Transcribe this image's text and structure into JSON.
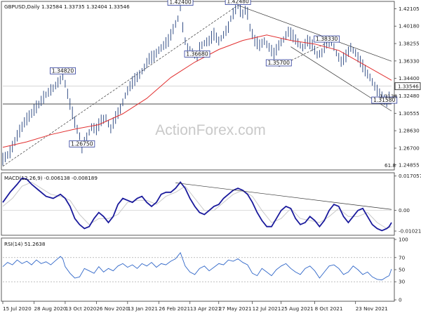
{
  "chart_data": {
    "type": "line",
    "symbol": "GBPUSD",
    "timeframe": "Daily",
    "ohlc": {
      "open": "1.32584",
      "high": "1.33735",
      "low": "1.32404",
      "close": "1.33546"
    },
    "header_text": "GBPUSD,Daily  1.32584 1.33735 1.32404 1.33546",
    "watermark": "ActionForex.com",
    "x_tick_labels": [
      "15 Jul 2020",
      "28 Aug 2020",
      "13 Oct 2020",
      "26 Nov 2020",
      "13 Jan 2021",
      "26 Feb 2021",
      "13 Apr 2021",
      "27 May 2021",
      "12 Jul 2021",
      "25 Aug 2021",
      "8 Oct 2021",
      "23 Nov 2021"
    ],
    "price_panel": {
      "y_ticks": [
        "1.42105",
        "1.40180",
        "1.38255",
        "1.36330",
        "1.34400",
        "1.32480",
        "1.30555",
        "1.28630",
        "1.26700",
        "1.24855"
      ],
      "ylim": [
        1.2445,
        1.426
      ],
      "current_price": "1.33546",
      "close_series": [
        [
          0,
          1.254
        ],
        [
          3,
          1.262
        ],
        [
          6,
          1.28
        ],
        [
          9,
          1.295
        ],
        [
          12,
          1.305
        ],
        [
          15,
          1.315
        ],
        [
          18,
          1.326
        ],
        [
          21,
          1.333
        ],
        [
          24,
          1.342
        ],
        [
          25,
          1.3482
        ],
        [
          26,
          1.338
        ],
        [
          28,
          1.315
        ],
        [
          30,
          1.295
        ],
        [
          32,
          1.28
        ],
        [
          33,
          1.2675
        ],
        [
          35,
          1.279
        ],
        [
          37,
          1.29
        ],
        [
          39,
          1.287
        ],
        [
          41,
          1.297
        ],
        [
          43,
          1.3
        ],
        [
          45,
          1.288
        ],
        [
          47,
          1.3
        ],
        [
          49,
          1.31
        ],
        [
          51,
          1.325
        ],
        [
          53,
          1.335
        ],
        [
          55,
          1.342
        ],
        [
          57,
          1.348
        ],
        [
          59,
          1.356
        ],
        [
          61,
          1.365
        ],
        [
          63,
          1.368
        ],
        [
          65,
          1.375
        ],
        [
          67,
          1.38
        ],
        [
          69,
          1.385
        ],
        [
          71,
          1.398
        ],
        [
          73,
          1.41
        ],
        [
          74,
          1.424
        ],
        [
          75,
          1.4
        ],
        [
          76,
          1.385
        ],
        [
          77,
          1.375
        ],
        [
          79,
          1.372
        ],
        [
          81,
          1.3668
        ],
        [
          82,
          1.378
        ],
        [
          84,
          1.383
        ],
        [
          86,
          1.385
        ],
        [
          88,
          1.392
        ],
        [
          90,
          1.385
        ],
        [
          92,
          1.392
        ],
        [
          94,
          1.4
        ],
        [
          95,
          1.41
        ],
        [
          96,
          1.415
        ],
        [
          97,
          1.42
        ],
        [
          98,
          1.4248
        ],
        [
          99,
          1.418
        ],
        [
          100,
          1.415
        ],
        [
          101,
          1.419
        ],
        [
          102,
          1.415
        ],
        [
          103,
          1.4
        ],
        [
          105,
          1.385
        ],
        [
          107,
          1.38
        ],
        [
          109,
          1.385
        ],
        [
          111,
          1.378
        ],
        [
          113,
          1.37
        ],
        [
          115,
          1.38
        ],
        [
          117,
          1.387
        ],
        [
          119,
          1.395
        ],
        [
          121,
          1.39
        ],
        [
          123,
          1.383
        ],
        [
          125,
          1.378
        ],
        [
          127,
          1.385
        ],
        [
          129,
          1.38
        ],
        [
          131,
          1.37
        ],
        [
          133,
          1.372
        ],
        [
          135,
          1.3833
        ],
        [
          137,
          1.385
        ],
        [
          139,
          1.372
        ],
        [
          141,
          1.362
        ],
        [
          143,
          1.368
        ],
        [
          145,
          1.378
        ],
        [
          147,
          1.372
        ],
        [
          149,
          1.362
        ],
        [
          151,
          1.352
        ],
        [
          153,
          1.345
        ],
        [
          155,
          1.335
        ],
        [
          157,
          1.325
        ],
        [
          159,
          1.32
        ],
        [
          160,
          1.318
        ],
        [
          161,
          1.326
        ],
        [
          162,
          1.3354
        ]
      ],
      "ma_red": [
        [
          0,
          1.268
        ],
        [
          10,
          1.274
        ],
        [
          20,
          1.282
        ],
        [
          30,
          1.288
        ],
        [
          40,
          1.293
        ],
        [
          50,
          1.305
        ],
        [
          60,
          1.322
        ],
        [
          70,
          1.345
        ],
        [
          80,
          1.362
        ],
        [
          90,
          1.376
        ],
        [
          100,
          1.386
        ],
        [
          110,
          1.392
        ],
        [
          120,
          1.386
        ],
        [
          130,
          1.382
        ],
        [
          140,
          1.375
        ],
        [
          150,
          1.36
        ],
        [
          160,
          1.345
        ],
        [
          162,
          1.342
        ]
      ],
      "labels": [
        {
          "text": "1.42400",
          "x": 74,
          "y": 1.424
        },
        {
          "text": "1.42480",
          "x": 98,
          "y": 1.4248
        },
        {
          "text": "1.34820",
          "x": 25,
          "y": 1.3482
        },
        {
          "text": "1.36680",
          "x": 81,
          "y": 1.3668
        },
        {
          "text": "1.35700",
          "x": 115,
          "y": 1.357
        },
        {
          "text": "1.38330",
          "x": 135,
          "y": 1.3833
        },
        {
          "text": "1.26750",
          "x": 33,
          "y": 1.2675
        },
        {
          "text": "1.31580",
          "x": 159,
          "y": 1.3158
        }
      ],
      "level_text_61_8": "61.8",
      "level_text_near_low": "1.3138",
      "hline_price": 1.3158
    },
    "macd_panel": {
      "title": "MACD(12,26,9) -0.006138 -0.008189",
      "y_ticks": [
        "0.017057",
        "0.00",
        "-0.010219"
      ],
      "ylim": [
        -0.0116,
        0.018
      ],
      "macd": [
        [
          0,
          0.004
        ],
        [
          3,
          0.009
        ],
        [
          6,
          0.013
        ],
        [
          8,
          0.016
        ],
        [
          10,
          0.0155
        ],
        [
          12,
          0.013
        ],
        [
          15,
          0.01
        ],
        [
          18,
          0.007
        ],
        [
          21,
          0.006
        ],
        [
          24,
          0.008
        ],
        [
          26,
          0.006
        ],
        [
          28,
          0.002
        ],
        [
          30,
          -0.004
        ],
        [
          32,
          -0.007
        ],
        [
          34,
          -0.009
        ],
        [
          36,
          -0.008
        ],
        [
          38,
          -0.004
        ],
        [
          40,
          -0.001
        ],
        [
          42,
          -0.003
        ],
        [
          44,
          -0.006
        ],
        [
          46,
          -0.003
        ],
        [
          48,
          0.003
        ],
        [
          50,
          0.006
        ],
        [
          52,
          0.005
        ],
        [
          54,
          0.004
        ],
        [
          56,
          0.006
        ],
        [
          58,
          0.007
        ],
        [
          60,
          0.004
        ],
        [
          62,
          0.002
        ],
        [
          64,
          0.004
        ],
        [
          66,
          0.008
        ],
        [
          68,
          0.009
        ],
        [
          70,
          0.009
        ],
        [
          72,
          0.011
        ],
        [
          74,
          0.014
        ],
        [
          76,
          0.011
        ],
        [
          78,
          0.006
        ],
        [
          80,
          0.002
        ],
        [
          82,
          -0.001
        ],
        [
          84,
          -0.002
        ],
        [
          86,
          0.0
        ],
        [
          88,
          0.002
        ],
        [
          90,
          0.003
        ],
        [
          92,
          0.006
        ],
        [
          94,
          0.008
        ],
        [
          96,
          0.01
        ],
        [
          98,
          0.011
        ],
        [
          100,
          0.01
        ],
        [
          102,
          0.008
        ],
        [
          104,
          0.004
        ],
        [
          106,
          -0.001
        ],
        [
          108,
          -0.005
        ],
        [
          110,
          -0.008
        ],
        [
          112,
          -0.008
        ],
        [
          114,
          -0.004
        ],
        [
          116,
          0.0
        ],
        [
          118,
          0.002
        ],
        [
          120,
          0.001
        ],
        [
          122,
          -0.004
        ],
        [
          124,
          -0.007
        ],
        [
          126,
          -0.006
        ],
        [
          128,
          -0.003
        ],
        [
          130,
          -0.005
        ],
        [
          132,
          -0.008
        ],
        [
          134,
          -0.005
        ],
        [
          136,
          0.0
        ],
        [
          138,
          0.003
        ],
        [
          140,
          0.002
        ],
        [
          142,
          -0.003
        ],
        [
          144,
          -0.006
        ],
        [
          146,
          -0.003
        ],
        [
          148,
          0.0
        ],
        [
          150,
          0.001
        ],
        [
          152,
          -0.003
        ],
        [
          154,
          -0.007
        ],
        [
          156,
          -0.009
        ],
        [
          158,
          -0.01
        ],
        [
          160,
          -0.009
        ],
        [
          161,
          -0.008
        ],
        [
          162,
          -0.006
        ]
      ],
      "signal": [
        [
          0,
          0.002
        ],
        [
          4,
          0.006
        ],
        [
          8,
          0.012
        ],
        [
          12,
          0.014
        ],
        [
          16,
          0.011
        ],
        [
          20,
          0.008
        ],
        [
          24,
          0.007
        ],
        [
          28,
          0.005
        ],
        [
          32,
          -0.002
        ],
        [
          36,
          -0.007
        ],
        [
          40,
          -0.004
        ],
        [
          44,
          -0.004
        ],
        [
          48,
          -0.002
        ],
        [
          52,
          0.004
        ],
        [
          56,
          0.005
        ],
        [
          60,
          0.005
        ],
        [
          64,
          0.003
        ],
        [
          68,
          0.007
        ],
        [
          72,
          0.009
        ],
        [
          76,
          0.012
        ],
        [
          80,
          0.006
        ],
        [
          84,
          0.0
        ],
        [
          88,
          0.0
        ],
        [
          92,
          0.004
        ],
        [
          96,
          0.008
        ],
        [
          100,
          0.01
        ],
        [
          104,
          0.007
        ],
        [
          108,
          0.0
        ],
        [
          112,
          -0.006
        ],
        [
          116,
          -0.004
        ],
        [
          120,
          0.001
        ],
        [
          124,
          -0.004
        ],
        [
          128,
          -0.005
        ],
        [
          132,
          -0.006
        ],
        [
          136,
          -0.003
        ],
        [
          140,
          0.001
        ],
        [
          144,
          -0.003
        ],
        [
          148,
          -0.003
        ],
        [
          152,
          -0.001
        ],
        [
          156,
          -0.006
        ],
        [
          160,
          -0.009
        ],
        [
          162,
          -0.008
        ]
      ]
    },
    "rsi_panel": {
      "title": "RSI(14) 51.2638",
      "y_ticks": [
        "100",
        "70",
        "50",
        "30",
        "0"
      ],
      "ylim": [
        0,
        100
      ],
      "rsi": [
        [
          0,
          55
        ],
        [
          2,
          62
        ],
        [
          4,
          58
        ],
        [
          6,
          66
        ],
        [
          8,
          60
        ],
        [
          10,
          64
        ],
        [
          12,
          58
        ],
        [
          14,
          66
        ],
        [
          16,
          60
        ],
        [
          18,
          63
        ],
        [
          20,
          58
        ],
        [
          22,
          65
        ],
        [
          24,
          72
        ],
        [
          25,
          68
        ],
        [
          26,
          55
        ],
        [
          28,
          44
        ],
        [
          30,
          36
        ],
        [
          32,
          38
        ],
        [
          34,
          52
        ],
        [
          36,
          48
        ],
        [
          38,
          44
        ],
        [
          40,
          55
        ],
        [
          42,
          46
        ],
        [
          44,
          52
        ],
        [
          46,
          48
        ],
        [
          48,
          56
        ],
        [
          50,
          60
        ],
        [
          52,
          54
        ],
        [
          54,
          58
        ],
        [
          56,
          52
        ],
        [
          58,
          60
        ],
        [
          60,
          56
        ],
        [
          62,
          62
        ],
        [
          64,
          54
        ],
        [
          66,
          60
        ],
        [
          68,
          58
        ],
        [
          70,
          64
        ],
        [
          72,
          68
        ],
        [
          74,
          78
        ],
        [
          76,
          56
        ],
        [
          78,
          46
        ],
        [
          80,
          42
        ],
        [
          82,
          52
        ],
        [
          84,
          56
        ],
        [
          86,
          48
        ],
        [
          88,
          54
        ],
        [
          90,
          60
        ],
        [
          92,
          58
        ],
        [
          94,
          66
        ],
        [
          96,
          64
        ],
        [
          98,
          68
        ],
        [
          100,
          62
        ],
        [
          102,
          58
        ],
        [
          104,
          44
        ],
        [
          106,
          40
        ],
        [
          108,
          52
        ],
        [
          110,
          46
        ],
        [
          112,
          40
        ],
        [
          114,
          50
        ],
        [
          116,
          56
        ],
        [
          118,
          60
        ],
        [
          120,
          52
        ],
        [
          122,
          46
        ],
        [
          124,
          42
        ],
        [
          126,
          52
        ],
        [
          128,
          56
        ],
        [
          130,
          48
        ],
        [
          132,
          36
        ],
        [
          134,
          46
        ],
        [
          136,
          56
        ],
        [
          138,
          58
        ],
        [
          140,
          52
        ],
        [
          142,
          42
        ],
        [
          144,
          46
        ],
        [
          146,
          56
        ],
        [
          148,
          50
        ],
        [
          150,
          42
        ],
        [
          152,
          46
        ],
        [
          154,
          38
        ],
        [
          156,
          34
        ],
        [
          158,
          33
        ],
        [
          160,
          38
        ],
        [
          161,
          40
        ],
        [
          162,
          51
        ]
      ]
    }
  }
}
